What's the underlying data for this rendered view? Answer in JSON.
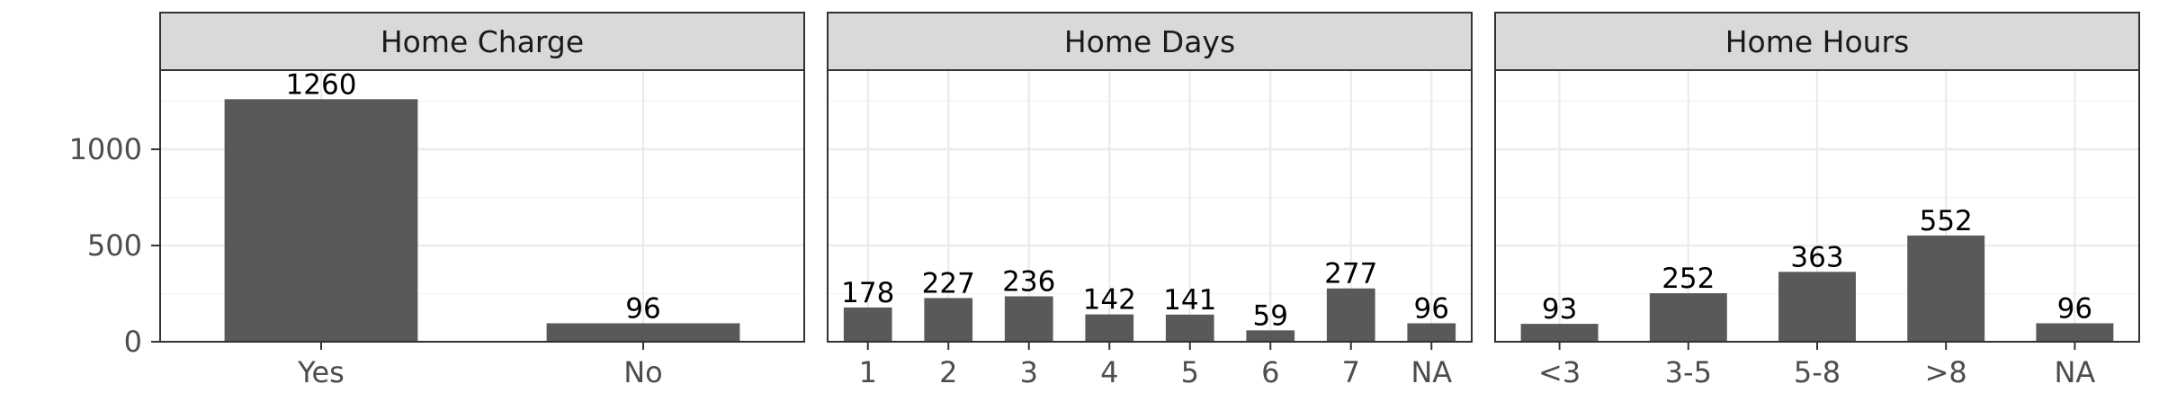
{
  "chart_data": {
    "type": "bar",
    "facets": [
      {
        "title": "Home Charge",
        "categories": [
          "Yes",
          "No"
        ],
        "values": [
          1260,
          96
        ]
      },
      {
        "title": "Home Days",
        "categories": [
          "1",
          "2",
          "3",
          "4",
          "5",
          "6",
          "7",
          "NA"
        ],
        "values": [
          178,
          227,
          236,
          142,
          141,
          59,
          277,
          96
        ]
      },
      {
        "title": "Home Hours",
        "categories": [
          "<3",
          "3-5",
          "5-8",
          ">8",
          "NA"
        ],
        "values": [
          93,
          252,
          363,
          552,
          96
        ]
      }
    ],
    "y_ticks": [
      0,
      500,
      1000
    ],
    "ylim": [
      0,
      1411
    ],
    "xlabel": "",
    "ylabel": "",
    "grid": true,
    "bar_color": "#595959",
    "strip_color": "#d9d9d9"
  }
}
